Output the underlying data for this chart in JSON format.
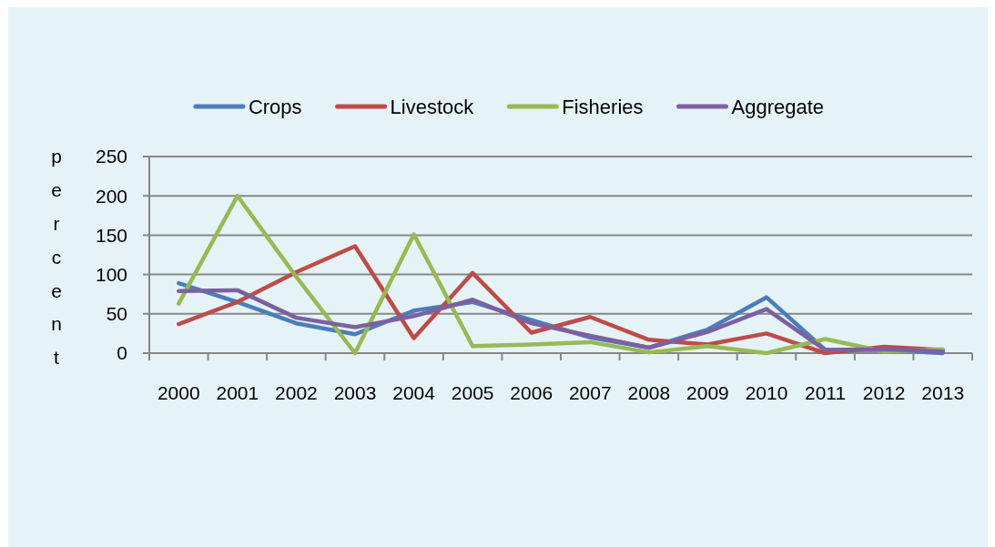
{
  "chart_data": {
    "type": "line",
    "categories": [
      "2000",
      "2001",
      "2002",
      "2003",
      "2004",
      "2005",
      "2006",
      "2007",
      "2008",
      "2009",
      "2010",
      "2011",
      "2012",
      "2013"
    ],
    "series": [
      {
        "name": "Crops",
        "color": "#4a7ebb",
        "values": [
          89,
          65,
          38,
          24,
          54,
          65,
          42,
          20,
          7,
          30,
          71,
          4,
          4,
          0
        ]
      },
      {
        "name": "Livestock",
        "color": "#be4b48",
        "values": [
          37,
          65,
          103,
          136,
          19,
          102,
          26,
          46,
          17,
          11,
          25,
          0,
          8,
          4
        ]
      },
      {
        "name": "Fisheries",
        "color": "#98b954",
        "values": [
          63,
          200,
          97,
          0,
          151,
          9,
          11,
          14,
          1,
          9,
          0,
          18,
          2,
          5
        ]
      },
      {
        "name": "Aggregate",
        "color": "#7d60a0",
        "values": [
          79,
          80,
          45,
          33,
          47,
          68,
          38,
          22,
          7,
          27,
          56,
          4,
          5,
          2
        ]
      }
    ],
    "ylim": [
      0,
      250
    ],
    "yticks": [
      0,
      50,
      100,
      150,
      200,
      250
    ],
    "ylabel": "percent",
    "legend": "top",
    "grid": "y"
  }
}
